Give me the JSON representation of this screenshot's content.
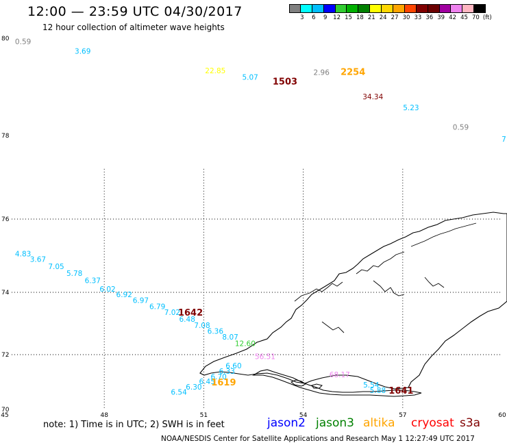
{
  "header": {
    "title": "12:00 — 23:59 UTC 04/30/2017",
    "subtitle": "12 hour collection of altimeter wave heights"
  },
  "legend": {
    "colors": [
      "#808080",
      "#00ffff",
      "#00bfff",
      "#0000ff",
      "#32cd32",
      "#00b000",
      "#008000",
      "#ffff00",
      "#ffd700",
      "#ffa500",
      "#ff4500",
      "#800000",
      "#6b0000",
      "#a000a0",
      "#ee82ee",
      "#ffb6c1",
      "#000000"
    ],
    "labels": [
      "3",
      "6",
      "9",
      "12",
      "15",
      "18",
      "21",
      "24",
      "27",
      "30",
      "33",
      "36",
      "39",
      "42",
      "45",
      "70",
      "(ft)"
    ]
  },
  "map": {
    "lon_ticks": [
      "45",
      "48",
      "51",
      "54",
      "57",
      "60"
    ],
    "lat_ticks": [
      "70",
      "72",
      "74",
      "76",
      "78",
      "80"
    ],
    "lon_range": [
      45,
      60
    ],
    "lat_range": [
      70,
      80
    ]
  },
  "observations": [
    {
      "text": "0.59",
      "lon": 45.55,
      "lat": 79.88,
      "color": "#808080"
    },
    {
      "text": "3.69",
      "lon": 47.35,
      "lat": 79.68,
      "color": "#00bfff"
    },
    {
      "text": "22.85",
      "lon": 51.35,
      "lat": 79.28,
      "color": "#ffff00"
    },
    {
      "text": "5.07",
      "lon": 52.4,
      "lat": 79.15,
      "color": "#00bfff"
    },
    {
      "text": "2.96",
      "lon": 54.55,
      "lat": 79.25,
      "color": "#808080"
    },
    {
      "text": "34.34",
      "lon": 56.1,
      "lat": 78.75,
      "color": "#800000"
    },
    {
      "text": "5.23",
      "lon": 57.25,
      "lat": 78.52,
      "color": "#00bfff"
    },
    {
      "text": "0.59",
      "lon": 58.75,
      "lat": 78.12,
      "color": "#808080"
    },
    {
      "text": "7",
      "lon": 60.05,
      "lat": 77.85,
      "color": "#00bfff"
    },
    {
      "text": "4.83",
      "lon": 45.55,
      "lat": 74.98,
      "color": "#00bfff"
    },
    {
      "text": "3.67",
      "lon": 46.0,
      "lat": 74.83,
      "color": "#00bfff"
    },
    {
      "text": "7.05",
      "lon": 46.55,
      "lat": 74.64,
      "color": "#00bfff"
    },
    {
      "text": "5.78",
      "lon": 47.1,
      "lat": 74.45,
      "color": "#00bfff"
    },
    {
      "text": "6.37",
      "lon": 47.65,
      "lat": 74.25,
      "color": "#00bfff"
    },
    {
      "text": "6.02",
      "lon": 48.1,
      "lat": 74.02,
      "color": "#00bfff"
    },
    {
      "text": "6.92",
      "lon": 48.6,
      "lat": 73.85,
      "color": "#00bfff"
    },
    {
      "text": "6.97",
      "lon": 49.1,
      "lat": 73.66,
      "color": "#00bfff"
    },
    {
      "text": "6.79",
      "lon": 49.6,
      "lat": 73.46,
      "color": "#00bfff"
    },
    {
      "text": "7.02",
      "lon": 50.05,
      "lat": 73.27,
      "color": "#00bfff"
    },
    {
      "text": "6.48",
      "lon": 50.5,
      "lat": 73.05,
      "color": "#00bfff"
    },
    {
      "text": "7.08",
      "lon": 50.95,
      "lat": 72.86,
      "color": "#00bfff"
    },
    {
      "text": "6.36",
      "lon": 51.35,
      "lat": 72.67,
      "color": "#00bfff"
    },
    {
      "text": "8.07",
      "lon": 51.8,
      "lat": 72.48,
      "color": "#00bfff"
    },
    {
      "text": "12.60",
      "lon": 52.25,
      "lat": 72.27,
      "color": "#32cd32"
    },
    {
      "text": "56.51",
      "lon": 52.85,
      "lat": 71.84,
      "color": "#ee82ee"
    },
    {
      "text": "6.60",
      "lon": 51.9,
      "lat": 71.5,
      "color": "#00bfff"
    },
    {
      "text": "6.33",
      "lon": 51.7,
      "lat": 71.3,
      "color": "#00bfff"
    },
    {
      "text": "6.70",
      "lon": 51.45,
      "lat": 71.1,
      "color": "#00bfff"
    },
    {
      "text": "6.45",
      "lon": 51.1,
      "lat": 70.92,
      "color": "#00bfff"
    },
    {
      "text": "6.30",
      "lon": 50.7,
      "lat": 70.73,
      "color": "#00bfff"
    },
    {
      "text": "6.54",
      "lon": 50.25,
      "lat": 70.54,
      "color": "#00bfff"
    },
    {
      "text": "68.17",
      "lon": 55.1,
      "lat": 71.17,
      "color": "#ee82ee"
    },
    {
      "text": "5.54",
      "lon": 56.05,
      "lat": 70.8,
      "color": "#00bfff"
    },
    {
      "text": "5.88",
      "lon": 56.25,
      "lat": 70.6,
      "color": "#00bfff"
    }
  ],
  "time_labels": [
    {
      "text": "1503",
      "lon": 53.45,
      "lat": 79.05,
      "color": "#800000"
    },
    {
      "text": "2254",
      "lon": 55.5,
      "lat": 79.25,
      "color": "#ffa500"
    },
    {
      "text": "1642",
      "lon": 50.6,
      "lat": 73.25,
      "color": "#800000"
    },
    {
      "text": "1619",
      "lon": 51.6,
      "lat": 70.88,
      "color": "#ffa500"
    },
    {
      "text": "1641",
      "lon": 56.95,
      "lat": 70.57,
      "color": "#800000"
    }
  ],
  "note": "note:  1) Time is in UTC;  2) SWH is in feet",
  "satellites": [
    {
      "name": "jason2",
      "color": "#0000ff"
    },
    {
      "name": "jason3",
      "color": "#008000"
    },
    {
      "name": "altika",
      "color": "#ffa500"
    },
    {
      "name": "cryosat",
      "color": "#ff0000"
    },
    {
      "name": "s3a",
      "color": "#800000"
    }
  ],
  "footer": "NOAA/NESDIS Center for Satellite Applications and Research    May  1 12:27:49 UTC 2017"
}
